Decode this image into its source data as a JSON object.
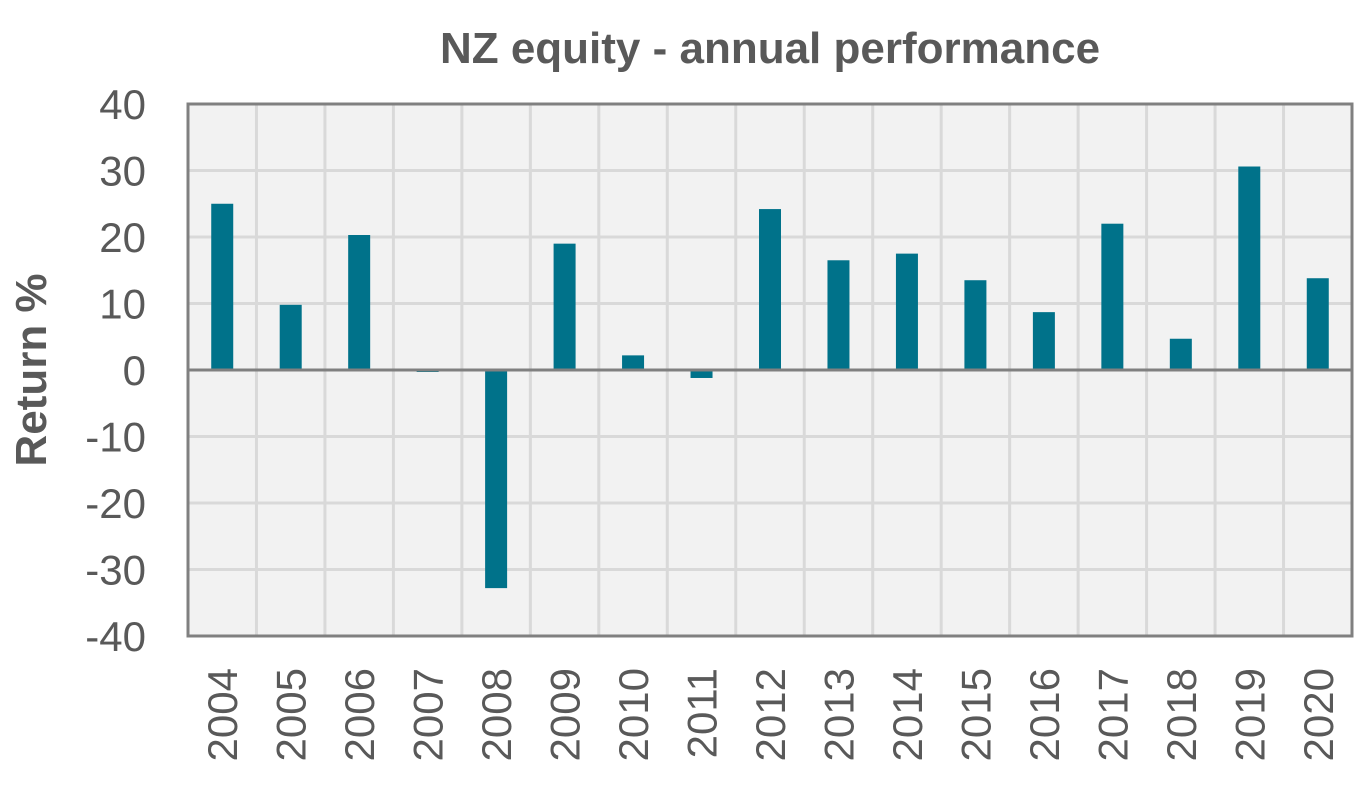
{
  "chart_data": {
    "type": "bar",
    "title": "NZ equity - annual performance",
    "xlabel": "",
    "ylabel": "Return %",
    "ylim": [
      -40,
      40
    ],
    "yticks": [
      40,
      30,
      20,
      10,
      0,
      -10,
      -20,
      -30,
      -40
    ],
    "grid": true,
    "categories": [
      "2004",
      "2005",
      "2006",
      "2007",
      "2008",
      "2009",
      "2010",
      "2011",
      "2012",
      "2013",
      "2014",
      "2015",
      "2016",
      "2017",
      "2018",
      "2019",
      "2020"
    ],
    "values": [
      25,
      9.8,
      20.3,
      -0.3,
      -32.8,
      19,
      2.2,
      -1.2,
      24.2,
      16.5,
      17.5,
      13.5,
      8.7,
      22,
      4.7,
      30.6,
      13.8
    ],
    "colors": {
      "bar": "#00728A",
      "plot_bg": "#F2F2F2",
      "grid": "#D9D9D9",
      "axis": "#808080",
      "zero_line": "#808080"
    }
  }
}
